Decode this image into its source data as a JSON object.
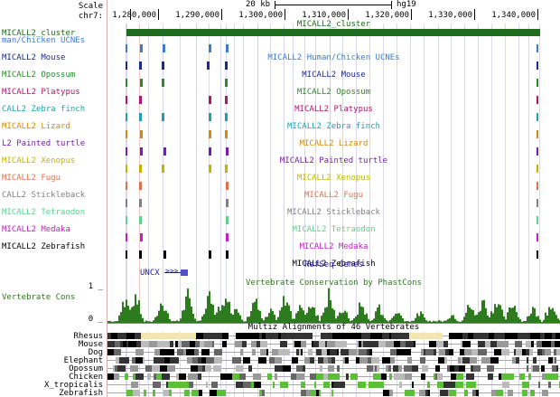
{
  "scale": {
    "label": "Scale",
    "bar_text": "20 kb",
    "assembly": "hg19"
  },
  "chrom": {
    "label": "chr7:",
    "ticks": [
      "1,280,000",
      "1,290,000",
      "1,300,000",
      "1,310,000",
      "1,320,000",
      "1,330,000",
      "1,340,000"
    ]
  },
  "cluster": {
    "label": "MICALL2_cluster",
    "center": "MICALL2_cluster",
    "color": "#1e6b1e"
  },
  "tracks": [
    {
      "left": "man/Chicken UCNEs",
      "center": "MICALL2 Human/Chicken UCNEs",
      "color": "#3c7bd0",
      "icon": "uc-ticks"
    },
    {
      "left": "MICALL2 Mouse",
      "center": "MICALL2 Mouse",
      "color": "#1a2b8c",
      "icon": "uc-ticks"
    },
    {
      "left": "MICALL2 Opossum",
      "center": "MICALL2 Opossum",
      "color": "#2b8a2b",
      "icon": "uc-ticks"
    },
    {
      "left": "MICALL2 Platypus",
      "center": "MICALL2 Platypus",
      "color": "#b0156e",
      "icon": "uc-ticks"
    },
    {
      "left": "CALL2 Zebra finch",
      "center": "MICALL2 Zebra finch",
      "color": "#1fa0b0",
      "icon": "uc-ticks"
    },
    {
      "left": "MICALL2 Lizard",
      "center": "MICALL2 Lizard",
      "color": "#d08a10",
      "icon": "uc-ticks"
    },
    {
      "left": "L2 Painted turtle",
      "center": "MICALL2 Painted turtle",
      "color": "#7a1ab0",
      "icon": "uc-ticks"
    },
    {
      "left": "MICALL2 Xenopus",
      "center": "MICALL2 Xenopus",
      "color": "#c4b400",
      "icon": "uc-ticks"
    },
    {
      "left": "MICALL2 Fugu",
      "center": "MICALL2 Fugu",
      "color": "#e0704a",
      "icon": "uc-ticks"
    },
    {
      "left": "CALL2 Stickleback",
      "center": "MICALL2 Stickleback",
      "color": "#808080",
      "icon": "uc-ticks"
    },
    {
      "left": "MICALL2 Tetraodon",
      "center": "MICALL2 Tetraodon",
      "color": "#5fcf90",
      "icon": "uc-ticks"
    },
    {
      "left": "MICALL2 Medaka",
      "center": "MICALL2 Medaka",
      "color": "#c020c0",
      "icon": "uc-ticks"
    },
    {
      "left": "MICALL2 Zebrafish",
      "center": "MICALL2 Zebrafish",
      "color": "#000000",
      "icon": "uc-ticks"
    }
  ],
  "refseq": {
    "center": "RefSeq Genes",
    "gene": "UNCX",
    "color": "#1c1ca0"
  },
  "cons": {
    "title": "Vertebrate Conservation by PhastCons",
    "label": "Vertebrate Cons",
    "y_top": "1 _",
    "y_bottom": "0 _",
    "color": "#2e7a1e"
  },
  "multiz": {
    "title": "Multiz Alignments of 46 Vertebrates",
    "species": [
      "Rhesus",
      "Mouse",
      "Dog",
      "Elephant",
      "Opossum",
      "Chicken",
      "X_tropicalis",
      "Zebrafish"
    ]
  }
}
